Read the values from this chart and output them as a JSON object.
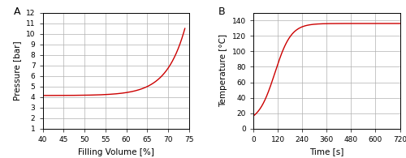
{
  "panel_A": {
    "label": "A",
    "xlabel": "Filling Volume [%]",
    "ylabel": "Pressure [bar]",
    "xlim": [
      40,
      75
    ],
    "ylim": [
      1,
      12
    ],
    "xticks": [
      40,
      45,
      50,
      55,
      60,
      65,
      70,
      75
    ],
    "yticks": [
      1,
      2,
      3,
      4,
      5,
      6,
      7,
      8,
      9,
      10,
      11,
      12
    ],
    "line_color": "#cc0000"
  },
  "panel_B": {
    "label": "B",
    "xlabel": "Time [s]",
    "ylabel": "Temperature [°C]",
    "xlim": [
      0,
      720
    ],
    "ylim": [
      0,
      150
    ],
    "xticks": [
      0,
      120,
      240,
      360,
      480,
      600,
      720
    ],
    "yticks": [
      0,
      20,
      40,
      60,
      80,
      100,
      120,
      140
    ],
    "line_color": "#cc0000"
  },
  "background_color": "#ffffff",
  "grid_color": "#b0b0b0",
  "tick_fontsize": 6.5,
  "label_fontsize": 7.5
}
